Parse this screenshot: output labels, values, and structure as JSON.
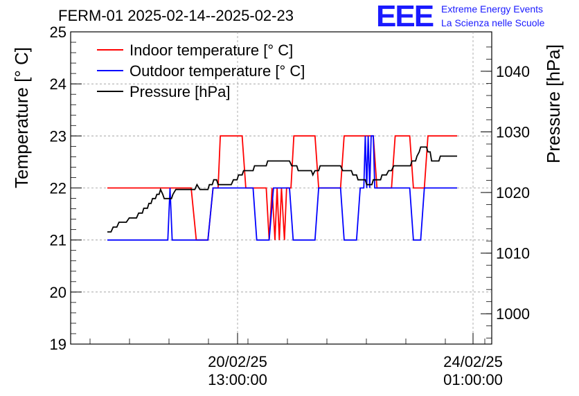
{
  "chart_data": {
    "type": "line",
    "title": "FERM-01 2025-02-14--2025-02-23",
    "ylabel_left": "Temperature [° C]",
    "ylabel_right": "Pressure [hPa]",
    "ylim_left": [
      19,
      25
    ],
    "ylim_right": [
      995,
      1046.5
    ],
    "yticks_left": [
      "19",
      "20",
      "21",
      "22",
      "23",
      "24",
      "25"
    ],
    "yticks_right": [
      "1000",
      "1010",
      "1020",
      "1030",
      "1040"
    ],
    "xticks": [
      {
        "line1": "20/02/25",
        "line2": "13:00:00"
      },
      {
        "line1": "24/02/25",
        "line2": "01:00:00"
      }
    ],
    "grid": true,
    "legend_position": "top-left",
    "series": [
      {
        "name": "Indoor temperature [° C]",
        "color": "#ff0000",
        "axis": "left",
        "points": [
          [
            0,
            22
          ],
          [
            11.5,
            22
          ],
          [
            12.2,
            21
          ],
          [
            13.8,
            21
          ],
          [
            14.5,
            22
          ],
          [
            15.2,
            22
          ],
          [
            15.5,
            23
          ],
          [
            18.5,
            23
          ],
          [
            19.0,
            22
          ],
          [
            21.8,
            22
          ],
          [
            22.2,
            21
          ],
          [
            22.6,
            22
          ],
          [
            23.0,
            21
          ],
          [
            23.3,
            22
          ],
          [
            23.6,
            21
          ],
          [
            23.9,
            22
          ],
          [
            24.3,
            21
          ],
          [
            24.6,
            22
          ],
          [
            25.2,
            22
          ],
          [
            25.6,
            23
          ],
          [
            28.5,
            23
          ],
          [
            29.0,
            22
          ],
          [
            32.0,
            22
          ],
          [
            32.5,
            23
          ],
          [
            36.5,
            23
          ],
          [
            37.0,
            22
          ],
          [
            39.0,
            22
          ],
          [
            39.5,
            23
          ],
          [
            41.5,
            23
          ],
          [
            42.0,
            22
          ],
          [
            43.5,
            22
          ],
          [
            44.0,
            23
          ],
          [
            48.0,
            23
          ]
        ]
      },
      {
        "name": "Outdoor temperature [° C]",
        "color": "#0000ff",
        "axis": "left",
        "points": [
          [
            0,
            21
          ],
          [
            8.3,
            21
          ],
          [
            8.6,
            22
          ],
          [
            8.9,
            21
          ],
          [
            13.8,
            21
          ],
          [
            14.5,
            22
          ],
          [
            20.0,
            22
          ],
          [
            20.5,
            21
          ],
          [
            22.2,
            21
          ],
          [
            22.8,
            22
          ],
          [
            25.0,
            22
          ],
          [
            25.5,
            21
          ],
          [
            28.5,
            21
          ],
          [
            29.0,
            22
          ],
          [
            32.0,
            22
          ],
          [
            32.5,
            21
          ],
          [
            34.2,
            21
          ],
          [
            34.7,
            22
          ],
          [
            35.2,
            22
          ],
          [
            35.4,
            23
          ],
          [
            35.6,
            22
          ],
          [
            35.8,
            23
          ],
          [
            36.0,
            22
          ],
          [
            36.2,
            23
          ],
          [
            36.5,
            23
          ],
          [
            36.7,
            22
          ],
          [
            41.5,
            22
          ],
          [
            42.0,
            21
          ],
          [
            43.0,
            21
          ],
          [
            43.5,
            22
          ],
          [
            48.0,
            22
          ]
        ]
      },
      {
        "name": "Pressure [hPa]",
        "color": "#000000",
        "axis": "right",
        "points": [
          [
            0,
            1013.5
          ],
          [
            0.5,
            1013.5
          ],
          [
            0.8,
            1014.3
          ],
          [
            1.3,
            1014.3
          ],
          [
            1.6,
            1015.1
          ],
          [
            2.6,
            1015.1
          ],
          [
            3.0,
            1015.8
          ],
          [
            4.0,
            1015.8
          ],
          [
            4.3,
            1016.6
          ],
          [
            4.8,
            1016.6
          ],
          [
            5.0,
            1017.4
          ],
          [
            5.5,
            1017.4
          ],
          [
            5.7,
            1018.2
          ],
          [
            6.0,
            1018.2
          ],
          [
            6.2,
            1019.0
          ],
          [
            6.6,
            1019.0
          ],
          [
            6.8,
            1019.7
          ],
          [
            7.1,
            1019.7
          ],
          [
            7.3,
            1020.5
          ],
          [
            7.6,
            1019.7
          ],
          [
            7.8,
            1019.0
          ],
          [
            8.8,
            1019.0
          ],
          [
            9.0,
            1019.7
          ],
          [
            9.4,
            1020.5
          ],
          [
            12.0,
            1020.5
          ],
          [
            12.3,
            1021.3
          ],
          [
            12.7,
            1020.5
          ],
          [
            13.8,
            1020.5
          ],
          [
            14.0,
            1021.3
          ],
          [
            14.4,
            1021.3
          ],
          [
            14.6,
            1022.1
          ],
          [
            15.0,
            1022.1
          ],
          [
            15.2,
            1021.3
          ],
          [
            17.0,
            1021.3
          ],
          [
            17.3,
            1022.1
          ],
          [
            17.8,
            1022.1
          ],
          [
            18.0,
            1022.9
          ],
          [
            18.5,
            1022.9
          ],
          [
            18.7,
            1023.6
          ],
          [
            20.0,
            1023.6
          ],
          [
            20.2,
            1024.4
          ],
          [
            21.8,
            1024.4
          ],
          [
            22.0,
            1025.2
          ],
          [
            25.0,
            1025.2
          ],
          [
            25.3,
            1024.4
          ],
          [
            26.0,
            1024.4
          ],
          [
            26.2,
            1023.6
          ],
          [
            28.0,
            1023.6
          ],
          [
            28.2,
            1022.9
          ],
          [
            28.5,
            1023.6
          ],
          [
            29.0,
            1023.6
          ],
          [
            29.2,
            1024.4
          ],
          [
            32.0,
            1024.4
          ],
          [
            32.3,
            1023.6
          ],
          [
            33.5,
            1023.6
          ],
          [
            33.7,
            1022.9
          ],
          [
            34.2,
            1022.9
          ],
          [
            34.4,
            1022.1
          ],
          [
            35.4,
            1022.1
          ],
          [
            35.6,
            1021.3
          ],
          [
            36.3,
            1021.3
          ],
          [
            36.5,
            1022.1
          ],
          [
            37.5,
            1022.1
          ],
          [
            37.7,
            1022.9
          ],
          [
            38.3,
            1022.9
          ],
          [
            38.6,
            1023.6
          ],
          [
            39.0,
            1023.6
          ],
          [
            39.3,
            1024.4
          ],
          [
            41.6,
            1024.4
          ],
          [
            41.8,
            1025.2
          ],
          [
            42.3,
            1025.2
          ],
          [
            42.5,
            1026.0
          ],
          [
            42.8,
            1026.7
          ],
          [
            43.0,
            1027.5
          ],
          [
            43.8,
            1027.5
          ],
          [
            44.0,
            1026.7
          ],
          [
            44.3,
            1026.7
          ],
          [
            44.5,
            1025.2
          ],
          [
            45.5,
            1025.2
          ],
          [
            45.7,
            1026.0
          ],
          [
            48.0,
            1026.0
          ]
        ]
      }
    ]
  },
  "logo": {
    "text": "EEE",
    "line1": "Extreme Energy Events",
    "line2": "La Scienza nelle Scuole"
  }
}
